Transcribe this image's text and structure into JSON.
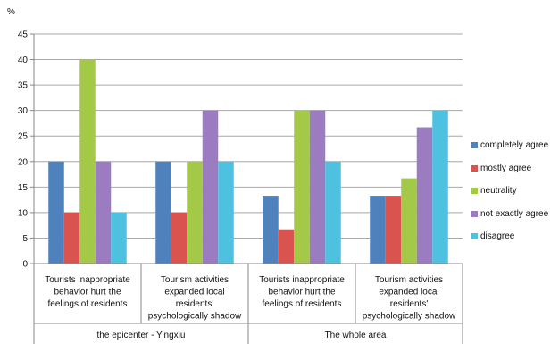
{
  "chart_data": {
    "type": "bar",
    "ylabel": "%",
    "ylim": [
      0,
      45
    ],
    "ytick_step": 5,
    "grid": true,
    "legend_position": "right",
    "groups": [
      {
        "label": "the epicenter - Yingxiu",
        "categories": [
          0,
          1
        ]
      },
      {
        "label": "The whole area",
        "categories": [
          2,
          3
        ]
      }
    ],
    "categories": [
      "Tourists inappropriate behavior hurt the feelings of residents",
      "Tourism activities expanded local residents' psychologically shadow",
      "Tourists inappropriate behavior hurt the feelings of residents",
      "Tourism activities expanded local residents' psychologically shadow"
    ],
    "category_lines": [
      [
        "Tourists inappropriate",
        "behavior hurt the",
        "feelings of residents"
      ],
      [
        "Tourism activities",
        "expanded local",
        "residents'",
        "psychologically shadow"
      ],
      [
        "Tourists inappropriate",
        "behavior hurt the",
        "feelings of residents"
      ],
      [
        "Tourism activities",
        "expanded local",
        "residents'",
        "psychologically shadow"
      ]
    ],
    "series": [
      {
        "name": "completely agree",
        "color": "#4f81bd",
        "values": [
          20,
          20,
          13.3,
          13.3
        ]
      },
      {
        "name": "mostly agree",
        "color": "#d9534f",
        "values": [
          10,
          10,
          6.7,
          13.3
        ]
      },
      {
        "name": "neutrality",
        "color": "#a4c948",
        "values": [
          40,
          20,
          30,
          16.7
        ]
      },
      {
        "name": "not exactly agree",
        "color": "#9b7cc0",
        "values": [
          20,
          30,
          30,
          26.7
        ]
      },
      {
        "name": "disagree",
        "color": "#4fc1e0",
        "values": [
          10,
          20,
          20,
          30
        ]
      }
    ]
  }
}
